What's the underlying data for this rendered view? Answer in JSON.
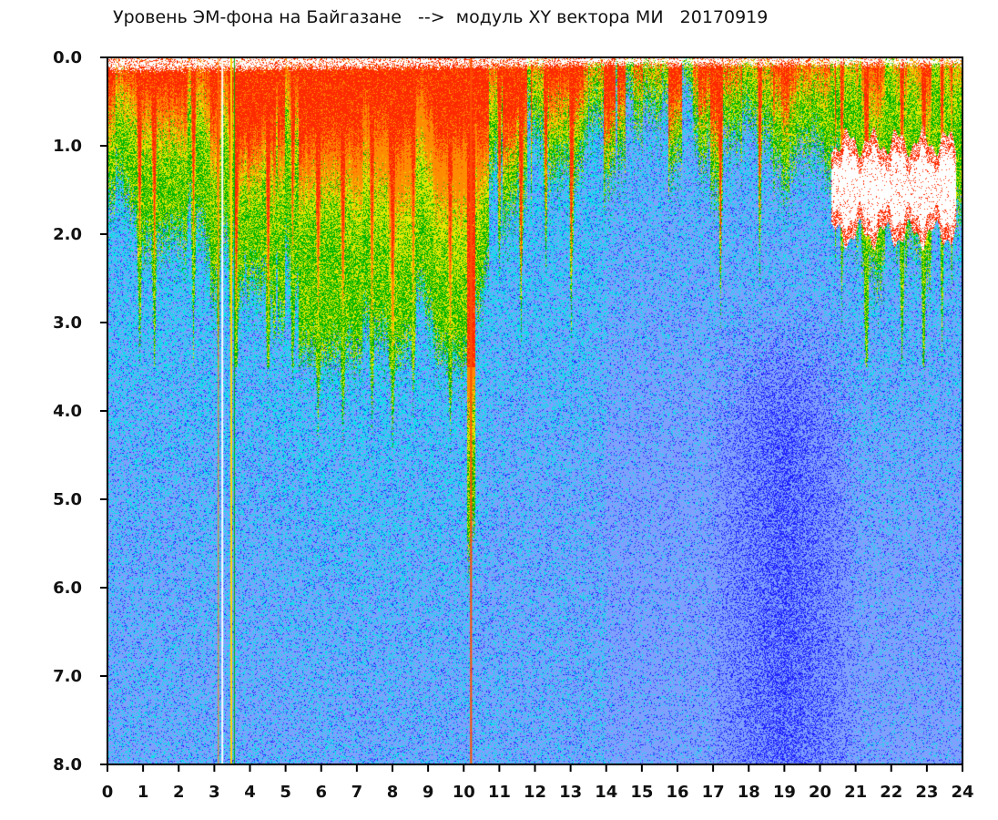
{
  "chart_data": {
    "type": "heatmap",
    "title": "Уровень ЭМ-фона на Байгазане   -->  модуль XY вектора МИ   20170919",
    "xlabel": "",
    "ylabel": "",
    "xlim": [
      0,
      24
    ],
    "ylim": [
      0,
      8
    ],
    "y_inverted": true,
    "grid": false,
    "x_ticks": [
      "0",
      "1",
      "2",
      "3",
      "4",
      "5",
      "6",
      "7",
      "8",
      "9",
      "10",
      "11",
      "12",
      "13",
      "14",
      "15",
      "16",
      "17",
      "18",
      "19",
      "20",
      "21",
      "22",
      "23",
      "24"
    ],
    "y_ticks": [
      "0.0",
      "1.0",
      "2.0",
      "3.0",
      "4.0",
      "5.0",
      "6.0",
      "7.0",
      "8.0"
    ],
    "colors": {
      "levels": [
        "#ffffff",
        "#ff2a00",
        "#ff8c00",
        "#e6e600",
        "#00b400",
        "#00e6e6",
        "#7fa0ff",
        "#2020ff"
      ],
      "background": "#ffffff",
      "frame": "#000000"
    },
    "envelope": {
      "hours": [
        0,
        1,
        2,
        3,
        4,
        5,
        6,
        7,
        8,
        9,
        10,
        11,
        12,
        13,
        14,
        15,
        16,
        17,
        18,
        19,
        20,
        21,
        22,
        23,
        24
      ],
      "red_edge": [
        0.5,
        0.6,
        0.6,
        0.6,
        0.6,
        0.7,
        0.8,
        1.0,
        0.9,
        0.8,
        0.9,
        0.5,
        0.4,
        0.3,
        0.2,
        0.1,
        0.1,
        0.1,
        0.1,
        0.1,
        0.1,
        0.1,
        0.1,
        0.1,
        0.1
      ],
      "yellow_edge": [
        1.0,
        1.3,
        1.2,
        1.4,
        1.2,
        1.5,
        1.6,
        2.0,
        2.2,
        2.0,
        2.4,
        0.9,
        0.8,
        0.7,
        0.5,
        0.4,
        0.4,
        0.4,
        0.5,
        0.5,
        0.5,
        0.7,
        0.7,
        0.8,
        0.8
      ],
      "green_edge": [
        1.5,
        2.2,
        2.0,
        2.5,
        2.0,
        2.8,
        3.2,
        3.3,
        3.2,
        3.0,
        3.4,
        1.3,
        1.2,
        1.1,
        0.8,
        0.7,
        0.7,
        0.8,
        0.9,
        1.0,
        1.0,
        2.2,
        2.3,
        2.2,
        2.0
      ],
      "dark_blue_center_hour": 19,
      "dark_blue_depth_range": [
        2.8,
        8.0
      ]
    },
    "gaps": [
      {
        "x_range": [
          20.3,
          23.8
        ],
        "y_range": [
          1.0,
          2.3
        ],
        "note": ""
      }
    ]
  }
}
